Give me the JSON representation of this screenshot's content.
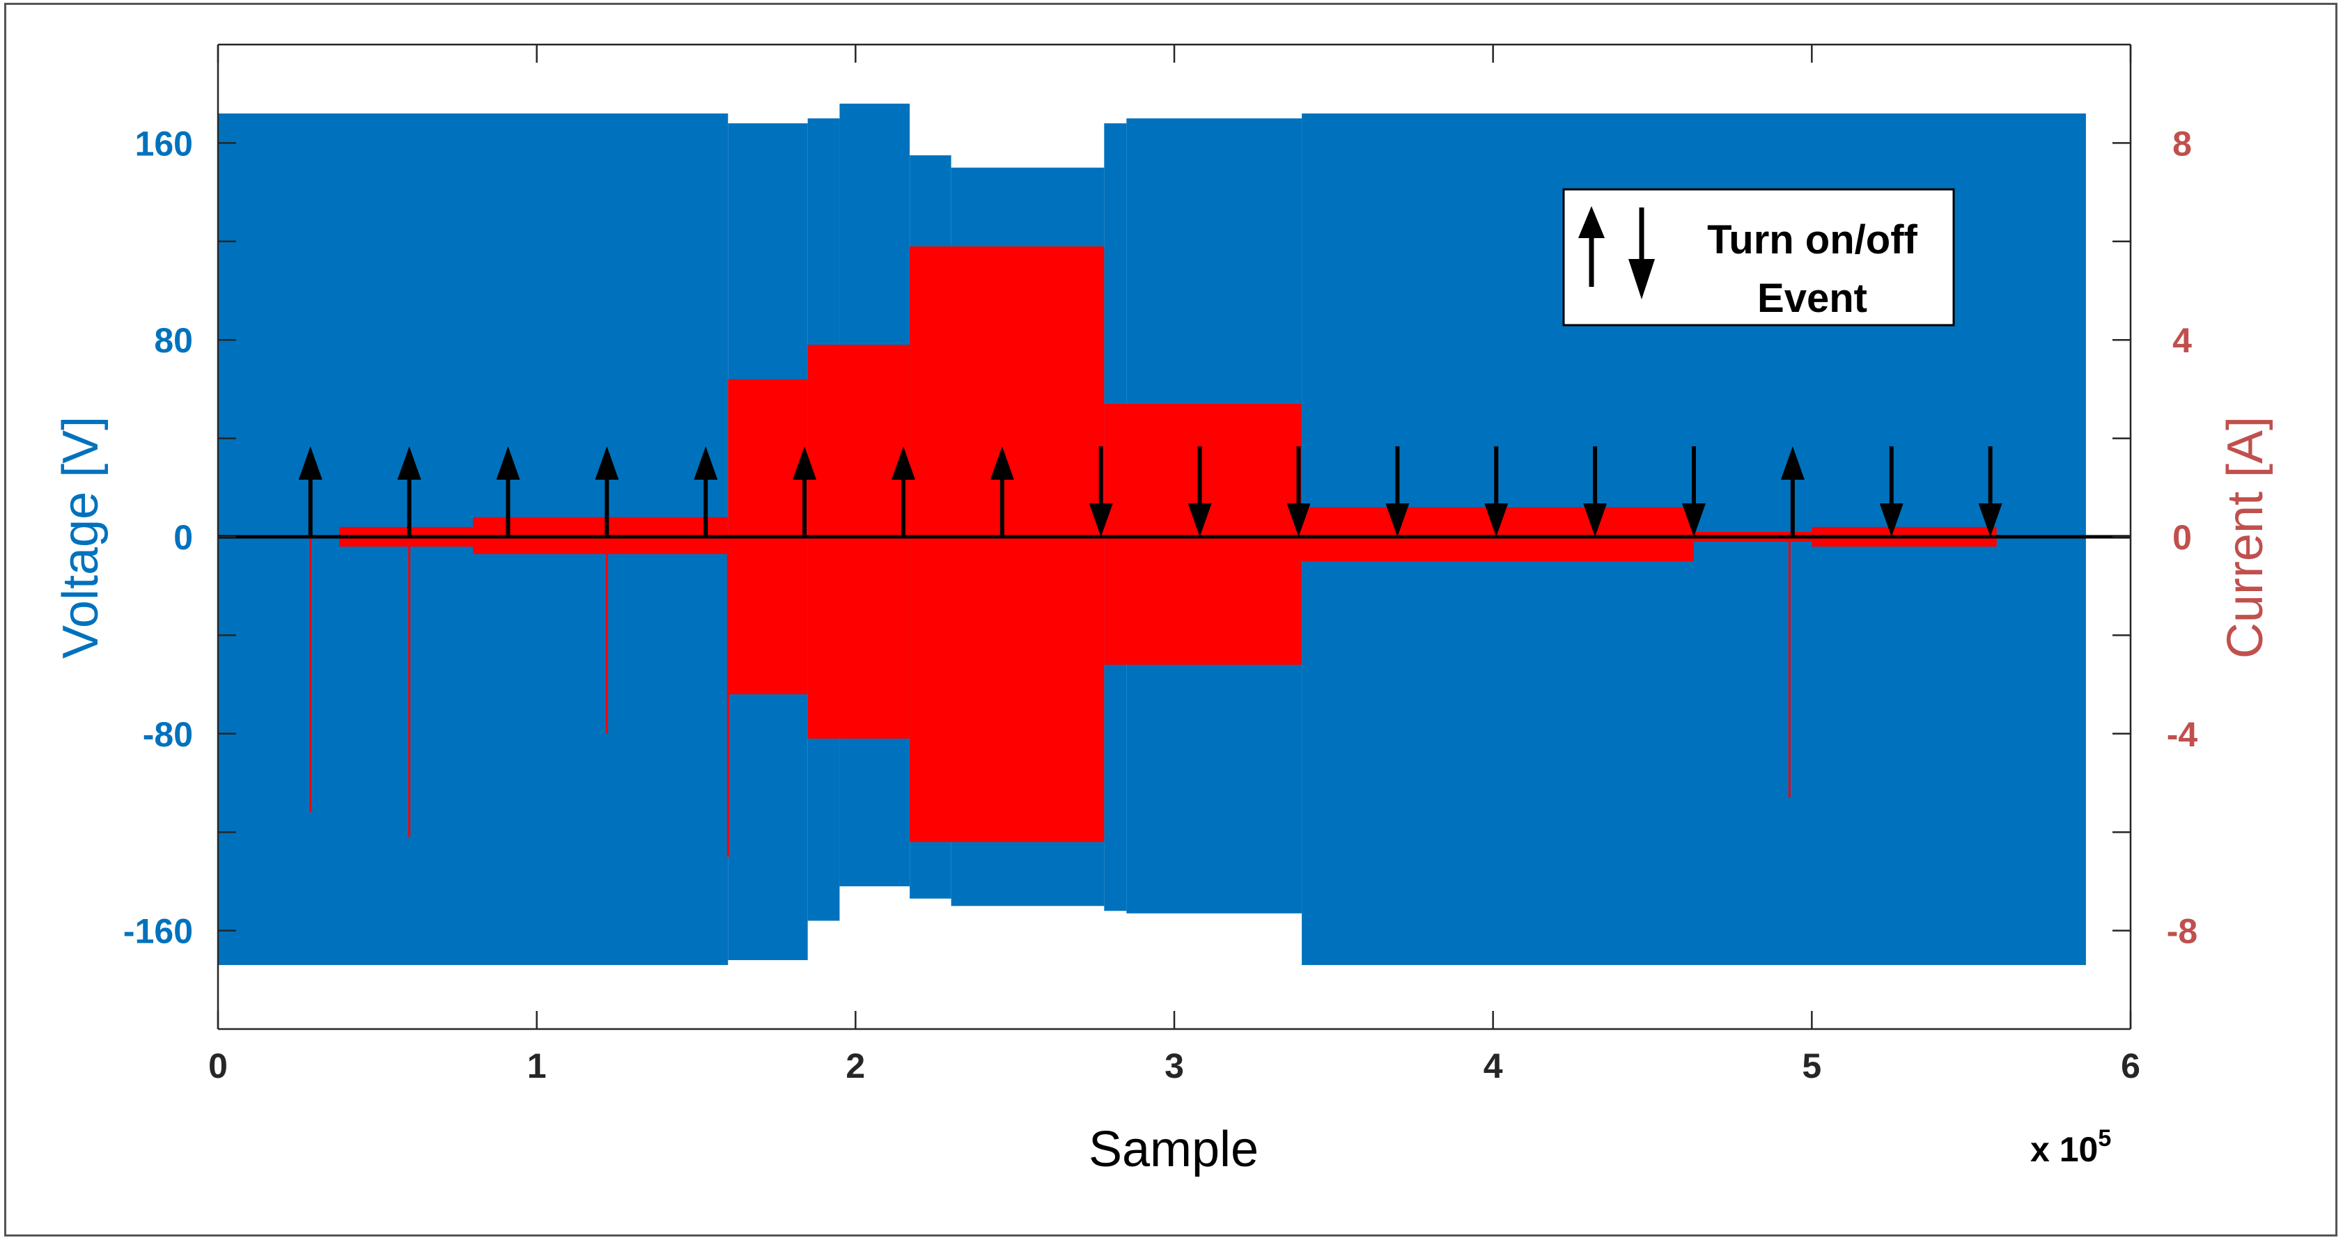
{
  "chart_data": {
    "type": "line",
    "title": "",
    "xlabel": "Sample",
    "x_multiplier_label": "x 10",
    "x_multiplier_exponent": "5",
    "ylabel_left": "Voltage [V]",
    "ylabel_right": "Current [A]",
    "xlim": [
      0,
      6
    ],
    "ylim_left": [
      -200,
      200
    ],
    "ylim_right": [
      -10,
      10
    ],
    "xticks": [
      "0",
      "1",
      "2",
      "3",
      "4",
      "5",
      "6"
    ],
    "yticks_left": [
      "160",
      "80",
      "0",
      "-80",
      "-160"
    ],
    "yticks_right": [
      "8",
      "4",
      "0",
      "-4",
      "-8"
    ],
    "grid": false,
    "legend": {
      "placement": "top-right",
      "lines": [
        "Turn on/off",
        "Event"
      ]
    },
    "colors": {
      "voltage": "#0072BD",
      "current": "#FF0000",
      "right_axis": "#C0504D",
      "zero_line": "#000000",
      "arrows": "#000000"
    },
    "series": [
      {
        "axis": "left",
        "band": true,
        "segments": [
          {
            "x0": 0.0,
            "x1": 1.6,
            "upper": 172,
            "lower": -174
          },
          {
            "x0": 1.6,
            "x1": 1.85,
            "upper": 168,
            "lower": -172
          },
          {
            "x0": 1.85,
            "x1": 1.95,
            "upper": 170,
            "lower": -156
          },
          {
            "x0": 1.95,
            "x1": 2.17,
            "upper": 176,
            "lower": -142
          },
          {
            "x0": 2.17,
            "x1": 2.3,
            "upper": 155,
            "lower": -147
          },
          {
            "x0": 2.3,
            "x1": 2.78,
            "upper": 150,
            "lower": -150
          },
          {
            "x0": 2.78,
            "x1": 2.85,
            "upper": 168,
            "lower": -152
          },
          {
            "x0": 2.85,
            "x1": 3.4,
            "upper": 170,
            "lower": -153
          },
          {
            "x0": 3.4,
            "x1": 5.86,
            "upper": 172,
            "lower": -174
          }
        ]
      },
      {
        "axis": "right",
        "band": true,
        "segments": [
          {
            "x0": 0.38,
            "x1": 0.8,
            "upper": 0.2,
            "lower": -0.2
          },
          {
            "x0": 0.8,
            "x1": 1.6,
            "upper": 0.4,
            "lower": -0.35
          },
          {
            "x0": 1.6,
            "x1": 1.85,
            "upper": 3.2,
            "lower": -3.2
          },
          {
            "x0": 1.85,
            "x1": 2.17,
            "upper": 3.9,
            "lower": -4.1
          },
          {
            "x0": 2.17,
            "x1": 2.78,
            "upper": 5.9,
            "lower": -6.2
          },
          {
            "x0": 2.78,
            "x1": 3.4,
            "upper": 2.7,
            "lower": -2.6
          },
          {
            "x0": 3.4,
            "x1": 4.63,
            "upper": 0.6,
            "lower": -0.5
          },
          {
            "x0": 4.63,
            "x1": 5.0,
            "upper": 0.1,
            "lower": -0.1
          },
          {
            "x0": 5.0,
            "x1": 5.58,
            "upper": 0.2,
            "lower": -0.2
          }
        ],
        "spikes": [
          {
            "x": 0.29,
            "y": -5.6
          },
          {
            "x": 0.6,
            "y": -6.1
          },
          {
            "x": 1.22,
            "y": -4.0
          },
          {
            "x": 1.6,
            "y": -6.5
          },
          {
            "x": 4.93,
            "y": -5.3
          }
        ]
      }
    ],
    "events": [
      {
        "x": 0.29,
        "direction": "up"
      },
      {
        "x": 0.6,
        "direction": "up"
      },
      {
        "x": 0.91,
        "direction": "up"
      },
      {
        "x": 1.22,
        "direction": "up"
      },
      {
        "x": 1.53,
        "direction": "up"
      },
      {
        "x": 1.84,
        "direction": "up"
      },
      {
        "x": 2.15,
        "direction": "up"
      },
      {
        "x": 2.46,
        "direction": "up"
      },
      {
        "x": 2.77,
        "direction": "down"
      },
      {
        "x": 3.08,
        "direction": "down"
      },
      {
        "x": 3.39,
        "direction": "down"
      },
      {
        "x": 3.7,
        "direction": "down"
      },
      {
        "x": 4.01,
        "direction": "down"
      },
      {
        "x": 4.32,
        "direction": "down"
      },
      {
        "x": 4.63,
        "direction": "down"
      },
      {
        "x": 4.94,
        "direction": "up"
      },
      {
        "x": 5.25,
        "direction": "down"
      },
      {
        "x": 5.56,
        "direction": "down"
      }
    ]
  }
}
